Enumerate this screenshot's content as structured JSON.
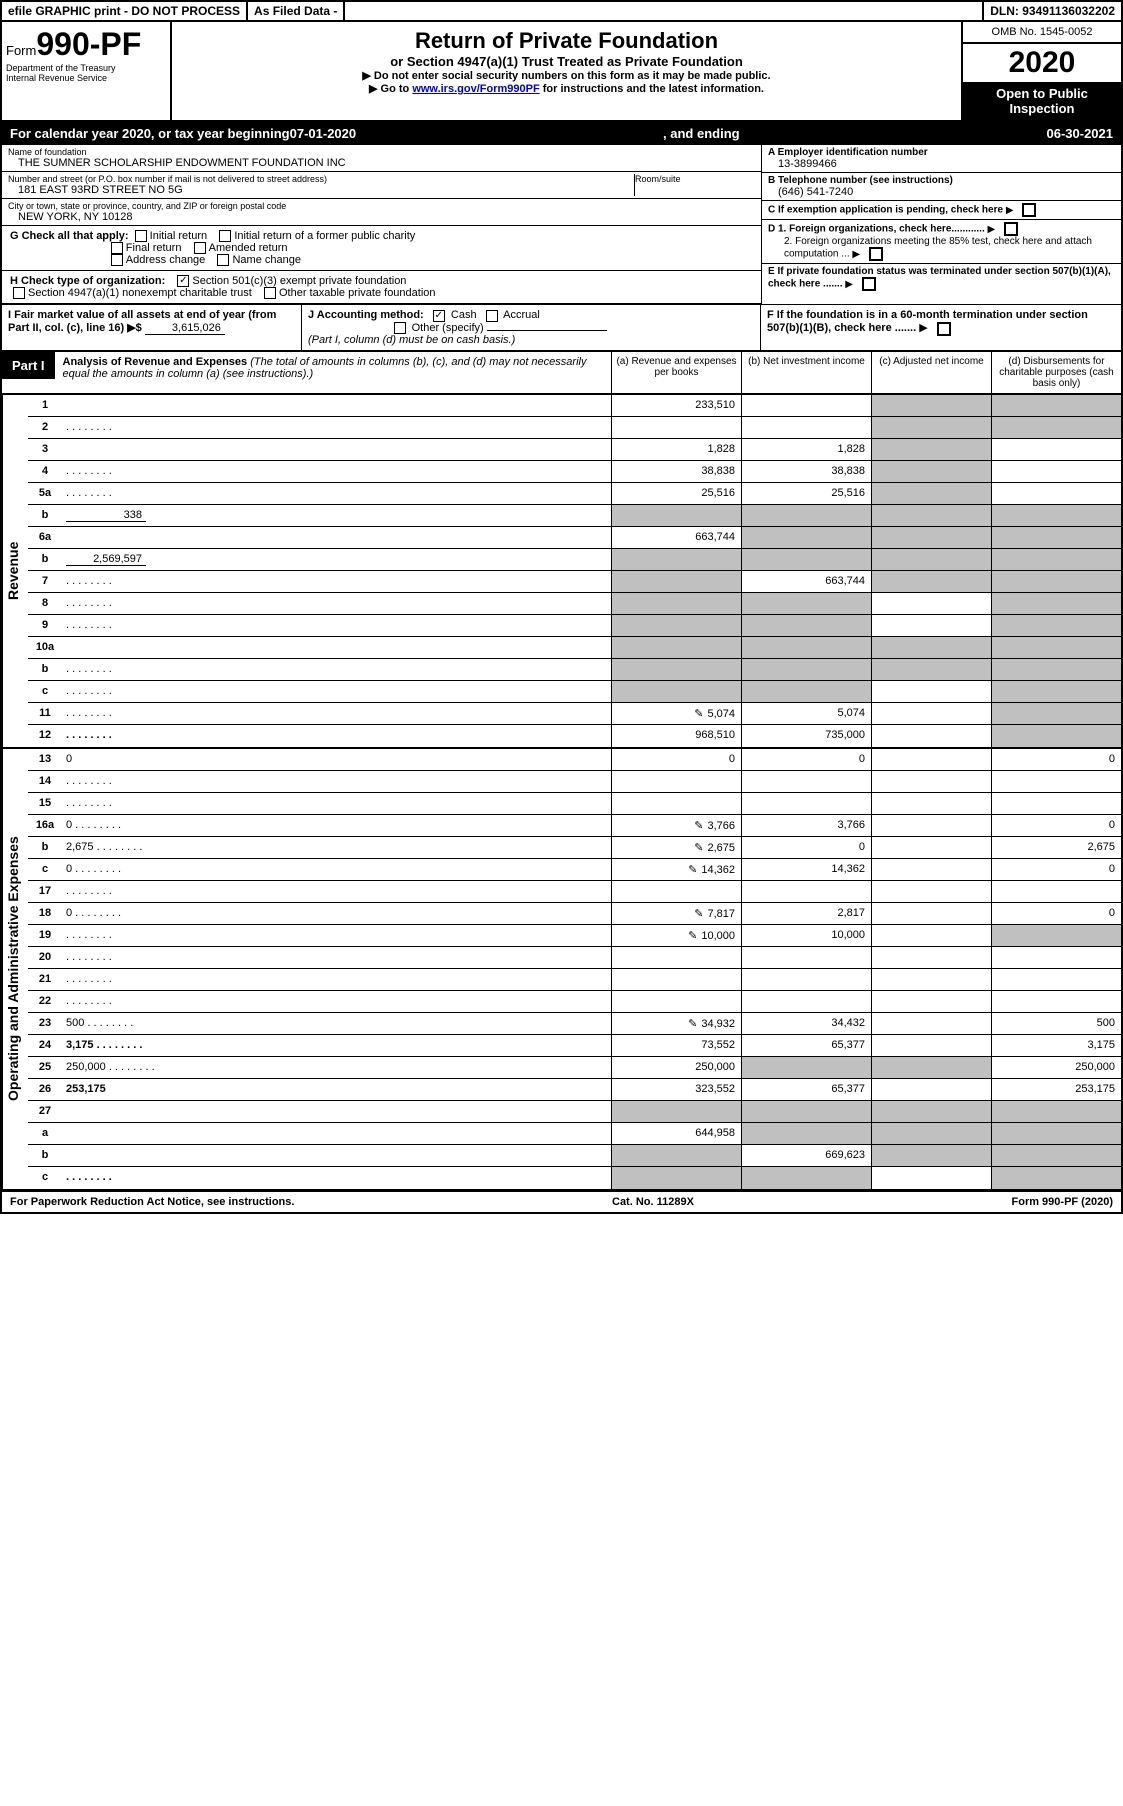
{
  "topbar": {
    "efile": "efile GRAPHIC print - DO NOT PROCESS",
    "asfiled": "As Filed Data -",
    "dln": "DLN: 93491136032202"
  },
  "header": {
    "form_prefix": "Form",
    "form_no": "990-PF",
    "dept1": "Department of the Treasury",
    "dept2": "Internal Revenue Service",
    "title": "Return of Private Foundation",
    "subtitle": "or Section 4947(a)(1) Trust Treated as Private Foundation",
    "instr1": "▶ Do not enter social security numbers on this form as it may be made public.",
    "instr2_pre": "▶ Go to ",
    "instr2_link": "www.irs.gov/Form990PF",
    "instr2_post": " for instructions and the latest information.",
    "omb": "OMB No. 1545-0052",
    "year": "2020",
    "inspect": "Open to Public Inspection"
  },
  "cal": {
    "pre": "For calendar year 2020, or tax year beginning ",
    "begin": "07-01-2020",
    "mid": ", and ending ",
    "end": "06-30-2021"
  },
  "info": {
    "name_label": "Name of foundation",
    "name": "THE SUMNER SCHOLARSHIP ENDOWMENT FOUNDATION INC",
    "addr_label": "Number and street (or P.O. box number if mail is not delivered to street address)",
    "addr": "181 EAST 93RD STREET NO 5G",
    "room_label": "Room/suite",
    "city_label": "City or town, state or province, country, and ZIP or foreign postal code",
    "city": "NEW YORK, NY 10128",
    "a_label": "A Employer identification number",
    "a_val": "13-3899466",
    "b_label": "B Telephone number (see instructions)",
    "b_val": "(646) 541-7240",
    "c_label": "C If exemption application is pending, check here",
    "d1": "D 1. Foreign organizations, check here............",
    "d2": "2. Foreign organizations meeting the 85% test, check here and attach computation ...",
    "e": "E If private foundation status was terminated under section 507(b)(1)(A), check here .......",
    "f": "F If the foundation is in a 60-month termination under section 507(b)(1)(B), check here ......."
  },
  "g": {
    "label": "G Check all that apply:",
    "opts": [
      "Initial return",
      "Initial return of a former public charity",
      "Final return",
      "Amended return",
      "Address change",
      "Name change"
    ]
  },
  "h": {
    "label": "H Check type of organization:",
    "opt1": "Section 501(c)(3) exempt private foundation",
    "opt2": "Section 4947(a)(1) nonexempt charitable trust",
    "opt3": "Other taxable private foundation"
  },
  "i": {
    "label": "I Fair market value of all assets at end of year (from Part II, col. (c), line 16) ▶$ ",
    "val": "3,615,026"
  },
  "j": {
    "label": "J Accounting method:",
    "cash": "Cash",
    "accrual": "Accrual",
    "other": "Other (specify)",
    "note": "(Part I, column (d) must be on cash basis.)"
  },
  "part1": {
    "label": "Part I",
    "title": "Analysis of Revenue and Expenses",
    "desc": " (The total of amounts in columns (b), (c), and (d) may not necessarily equal the amounts in column (a) (see instructions).)",
    "cols": {
      "a": "(a) Revenue and expenses per books",
      "b": "(b) Net investment income",
      "c": "(c) Adjusted net income",
      "d": "(d) Disbursements for charitable purposes (cash basis only)"
    }
  },
  "side": {
    "revenue": "Revenue",
    "expenses": "Operating and Administrative Expenses"
  },
  "rows": [
    {
      "n": "1",
      "d": "",
      "a": "233,510",
      "b": "",
      "c": "",
      "db": true,
      "cb": true
    },
    {
      "n": "2",
      "d": "",
      "dots": true,
      "a": "",
      "b": "",
      "c": "",
      "db": true,
      "cb": true
    },
    {
      "n": "3",
      "d": "",
      "a": "1,828",
      "b": "1,828",
      "c": "",
      "cb": true
    },
    {
      "n": "4",
      "d": "",
      "dots": true,
      "a": "38,838",
      "b": "38,838",
      "c": "",
      "cb": true
    },
    {
      "n": "5a",
      "d": "",
      "dots": true,
      "a": "25,516",
      "b": "25,516",
      "c": "",
      "cb": true
    },
    {
      "n": "b",
      "d": "",
      "inline": "338",
      "a": "",
      "b": "",
      "c": "",
      "ab": true,
      "bb": true,
      "cb": true,
      "db": true
    },
    {
      "n": "6a",
      "d": "",
      "a": "663,744",
      "b": "",
      "c": "",
      "bb": true,
      "cb": true,
      "db": true
    },
    {
      "n": "b",
      "d": "",
      "inline": "2,569,597",
      "a": "",
      "b": "",
      "c": "",
      "ab": true,
      "bb": true,
      "cb": true,
      "db": true
    },
    {
      "n": "7",
      "d": "",
      "dots": true,
      "a": "",
      "b": "663,744",
      "c": "",
      "ab": true,
      "cb": true,
      "db": true
    },
    {
      "n": "8",
      "d": "",
      "dots": true,
      "a": "",
      "b": "",
      "c": "",
      "ab": true,
      "bb": true,
      "db": true
    },
    {
      "n": "9",
      "d": "",
      "dots": true,
      "a": "",
      "b": "",
      "c": "",
      "ab": true,
      "bb": true,
      "db": true
    },
    {
      "n": "10a",
      "d": "",
      "box": true,
      "a": "",
      "b": "",
      "c": "",
      "ab": true,
      "bb": true,
      "cb": true,
      "db": true
    },
    {
      "n": "b",
      "d": "",
      "dots": true,
      "box": true,
      "a": "",
      "b": "",
      "c": "",
      "ab": true,
      "bb": true,
      "cb": true,
      "db": true
    },
    {
      "n": "c",
      "d": "",
      "dots": true,
      "a": "",
      "b": "",
      "c": "",
      "ab": true,
      "bb": true,
      "db": true
    },
    {
      "n": "11",
      "d": "",
      "dots": true,
      "icon": true,
      "a": "5,074",
      "b": "5,074",
      "c": "",
      "db": true
    },
    {
      "n": "12",
      "d": "",
      "dots": true,
      "bold": true,
      "a": "968,510",
      "b": "735,000",
      "c": "",
      "db": true
    }
  ],
  "exprows": [
    {
      "n": "13",
      "d": "0",
      "a": "0",
      "b": "0",
      "c": ""
    },
    {
      "n": "14",
      "d": "",
      "dots": true,
      "a": "",
      "b": "",
      "c": ""
    },
    {
      "n": "15",
      "d": "",
      "dots": true,
      "a": "",
      "b": "",
      "c": ""
    },
    {
      "n": "16a",
      "d": "0",
      "dots": true,
      "icon": true,
      "a": "3,766",
      "b": "3,766",
      "c": ""
    },
    {
      "n": "b",
      "d": "2,675",
      "dots": true,
      "icon": true,
      "a": "2,675",
      "b": "0",
      "c": ""
    },
    {
      "n": "c",
      "d": "0",
      "dots": true,
      "icon": true,
      "a": "14,362",
      "b": "14,362",
      "c": ""
    },
    {
      "n": "17",
      "d": "",
      "dots": true,
      "a": "",
      "b": "",
      "c": ""
    },
    {
      "n": "18",
      "d": "0",
      "dots": true,
      "icon": true,
      "a": "7,817",
      "b": "2,817",
      "c": ""
    },
    {
      "n": "19",
      "d": "",
      "dots": true,
      "icon": true,
      "a": "10,000",
      "b": "10,000",
      "c": "",
      "db": true
    },
    {
      "n": "20",
      "d": "",
      "dots": true,
      "a": "",
      "b": "",
      "c": ""
    },
    {
      "n": "21",
      "d": "",
      "dots": true,
      "a": "",
      "b": "",
      "c": ""
    },
    {
      "n": "22",
      "d": "",
      "dots": true,
      "a": "",
      "b": "",
      "c": ""
    },
    {
      "n": "23",
      "d": "500",
      "dots": true,
      "icon": true,
      "a": "34,932",
      "b": "34,432",
      "c": ""
    },
    {
      "n": "24",
      "d": "3,175",
      "dots": true,
      "bold": true,
      "a": "73,552",
      "b": "65,377",
      "c": ""
    },
    {
      "n": "25",
      "d": "250,000",
      "dots": true,
      "a": "250,000",
      "b": "",
      "c": "",
      "bb": true,
      "cb": true
    },
    {
      "n": "26",
      "d": "253,175",
      "bold": true,
      "a": "323,552",
      "b": "65,377",
      "c": ""
    },
    {
      "n": "27",
      "d": "",
      "a": "",
      "b": "",
      "c": "",
      "ab": true,
      "bb": true,
      "cb": true,
      "db": true
    },
    {
      "n": "a",
      "d": "",
      "bold": true,
      "a": "644,958",
      "b": "",
      "c": "",
      "bb": true,
      "cb": true,
      "db": true
    },
    {
      "n": "b",
      "d": "",
      "bold": true,
      "a": "",
      "b": "669,623",
      "c": "",
      "ab": true,
      "cb": true,
      "db": true
    },
    {
      "n": "c",
      "d": "",
      "dots": true,
      "bold": true,
      "a": "",
      "b": "",
      "c": "",
      "ab": true,
      "bb": true,
      "db": true
    }
  ],
  "footer": {
    "left": "For Paperwork Reduction Act Notice, see instructions.",
    "mid": "Cat. No. 11289X",
    "right": "Form 990-PF (2020)"
  }
}
